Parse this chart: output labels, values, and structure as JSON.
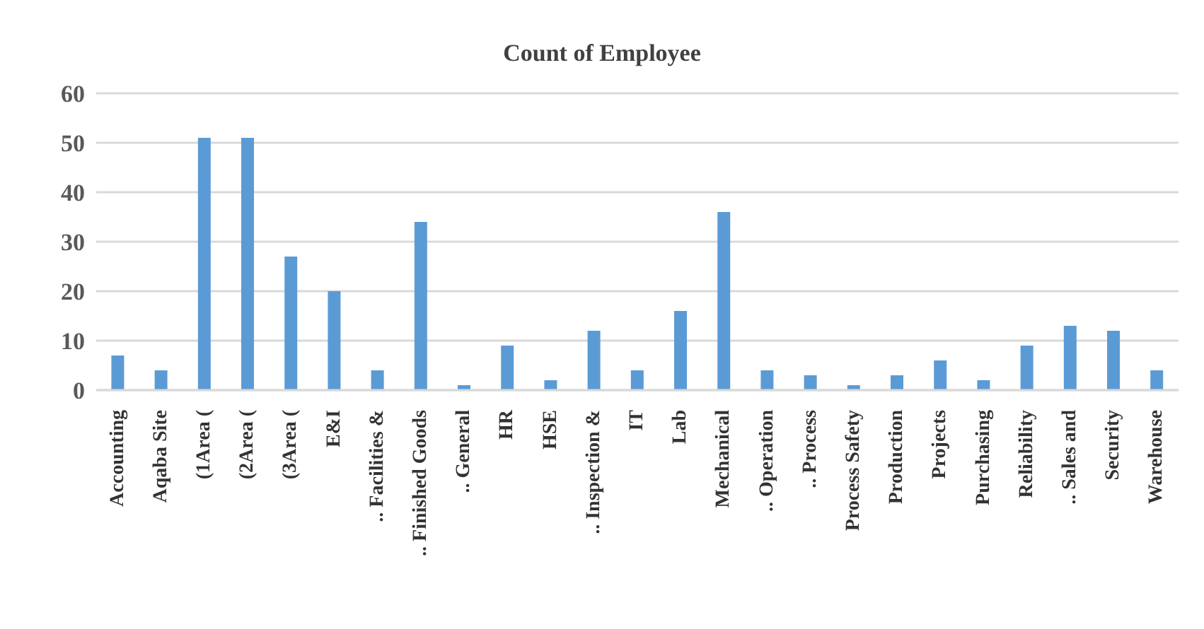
{
  "chart_data": {
    "type": "bar",
    "title": "Count of Employee",
    "categories": [
      "Accounting",
      "Aqaba Site",
      "(1Area (",
      "(2Area (",
      "(3Area (",
      "E&I",
      ".. Facilities &",
      ".. Finished Goods",
      ".. General",
      "HR",
      "HSE",
      ".. Inspection &",
      "IT",
      "Lab",
      "Mechanical",
      ".. Operation",
      ".. Process",
      "Process Safety",
      "Production",
      "Projects",
      "Purchasing",
      "Reliability",
      ".. Sales and",
      "Security",
      "Warehouse"
    ],
    "values": [
      7,
      4,
      51,
      51,
      27,
      20,
      4,
      34,
      1,
      9,
      2,
      12,
      4,
      16,
      36,
      4,
      3,
      1,
      3,
      6,
      2,
      9,
      13,
      12,
      4
    ],
    "color": "#5b9bd5",
    "ylim": [
      0,
      60
    ],
    "yticks": [
      0,
      10,
      20,
      30,
      40,
      50,
      60
    ],
    "grid": "y"
  }
}
